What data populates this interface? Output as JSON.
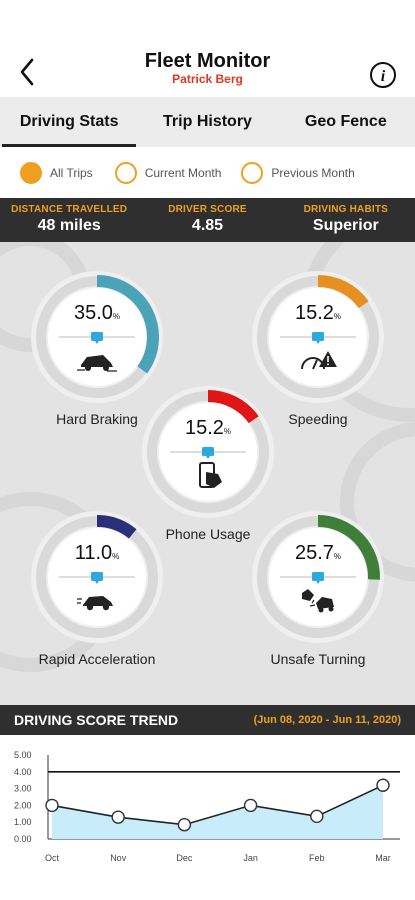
{
  "header": {
    "title": "Fleet Monitor",
    "subtitle": "Patrick Berg",
    "back_icon": "chevron-left-icon",
    "info_icon": "info-icon"
  },
  "tabs": [
    {
      "label": "Driving Stats",
      "active": true
    },
    {
      "label": "Trip History",
      "active": false
    },
    {
      "label": "Geo Fence",
      "active": false
    }
  ],
  "filters": [
    {
      "label": "All Trips",
      "selected": true
    },
    {
      "label": "Current Month",
      "selected": false
    },
    {
      "label": "Previous Month",
      "selected": false
    }
  ],
  "colors": {
    "accent": "#f0a020",
    "dark_bar": "#2f2f2f",
    "red": "#e2361d"
  },
  "stats": [
    {
      "label": "DISTANCE TRAVELLED",
      "value": "48 miles"
    },
    {
      "label": "DRIVER SCORE",
      "value": "4.85"
    },
    {
      "label": "DRIVING HABITS",
      "value": "Superior"
    }
  ],
  "gauges": [
    {
      "name": "Hard Braking",
      "value": "35.0",
      "unit": "%",
      "fraction": 0.35,
      "color": "#4aa3b6",
      "icon": "car-braking-icon"
    },
    {
      "name": "Speeding",
      "value": "15.2",
      "unit": "%",
      "fraction": 0.152,
      "color": "#e8901f",
      "icon": "speedometer-warning-icon"
    },
    {
      "name": "Phone Usage",
      "value": "15.2",
      "unit": "%",
      "fraction": 0.152,
      "color": "#e01515",
      "icon": "phone-hand-icon"
    },
    {
      "name": "Rapid Acceleration",
      "value": "11.0",
      "unit": "%",
      "fraction": 0.11,
      "color": "#2b2f7a",
      "icon": "car-accelerating-icon"
    },
    {
      "name": "Unsafe Turning",
      "value": "25.7",
      "unit": "%",
      "fraction": 0.257,
      "color": "#3f7f3a",
      "icon": "car-collision-icon"
    }
  ],
  "trend": {
    "title": "DRIVING SCORE TREND",
    "range": "(Jun 08, 2020 - Jun 11, 2020)"
  },
  "chart_data": {
    "type": "area",
    "categories": [
      "Oct",
      "Nov",
      "Dec",
      "Jan",
      "Feb",
      "Mar"
    ],
    "values": [
      2.0,
      1.3,
      0.85,
      2.0,
      1.35,
      3.2
    ],
    "y_ticks": [
      "0.00",
      "1.00",
      "2.00",
      "3.00",
      "4.00",
      "5.00"
    ],
    "ylim": [
      0,
      5
    ],
    "reference_line": 4.0,
    "fill_color": "#c9ecfb",
    "line_color": "#222222",
    "grid": false
  }
}
